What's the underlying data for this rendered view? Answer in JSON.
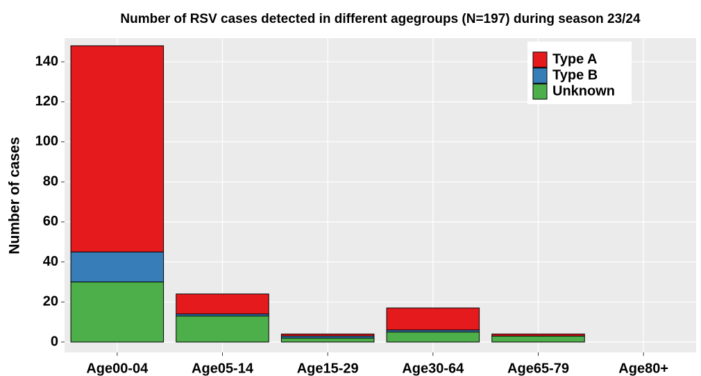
{
  "chart_data": {
    "type": "bar",
    "stacked": true,
    "title": "Number of RSV cases detected in different agegroups (N=197) during season 23/24",
    "y_label": "Number of cases",
    "categories": [
      "Age00-04",
      "Age05-14",
      "Age15-29",
      "Age30-64",
      "Age65-79",
      "Age80+"
    ],
    "series": [
      {
        "name": "Type A",
        "color": "#e41a1c",
        "values": [
          103,
          10,
          1,
          11,
          1,
          0
        ]
      },
      {
        "name": "Type B",
        "color": "#377eb8",
        "values": [
          15,
          1,
          1,
          1,
          0,
          0
        ]
      },
      {
        "name": "Unknown",
        "color": "#4daf4a",
        "values": [
          30,
          13,
          2,
          5,
          3,
          0
        ]
      }
    ],
    "ylim": [
      -5.2,
      151.8
    ],
    "yticks": [
      0,
      20,
      40,
      60,
      80,
      100,
      120,
      140
    ],
    "grid": true,
    "legend_position": "top-right"
  }
}
